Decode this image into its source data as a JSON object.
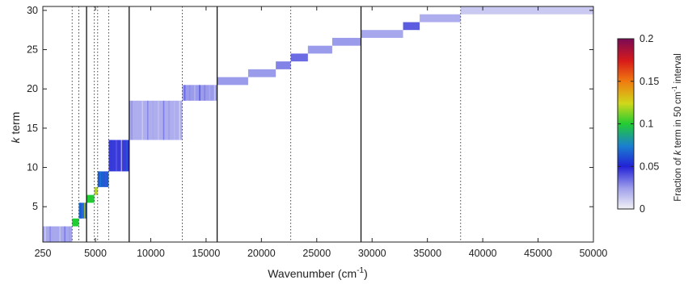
{
  "chart_data": {
    "type": "heatmap",
    "xlabel": "Wavenumber (cm",
    "xlabel_sup": "-1",
    "xlabel_tail": ")",
    "ylabel_italic": "k",
    "ylabel_rest": " term",
    "x_ticks": [
      "250",
      "5000",
      "10000",
      "15000",
      "20000",
      "25000",
      "30000",
      "35000",
      "40000",
      "45000",
      "50000"
    ],
    "x_tick_values": [
      250,
      5000,
      10000,
      15000,
      20000,
      25000,
      30000,
      35000,
      40000,
      45000,
      50000
    ],
    "y_ticks": [
      "5",
      "10",
      "15",
      "20",
      "25",
      "30"
    ],
    "y_tick_values": [
      5,
      10,
      15,
      20,
      25,
      30
    ],
    "xlim": [
      250,
      50000
    ],
    "ylim": [
      0.5,
      30.5
    ],
    "solid_band_boundaries": [
      4200,
      8050,
      16000,
      29000
    ],
    "dotted_lines": [
      2900,
      3500,
      4900,
      5200,
      6200,
      12850,
      22650,
      38000
    ],
    "colorbar": {
      "label_prefix": "Fraction of ",
      "label_italic": "k",
      "label_mid": " term in 50 cm",
      "label_sup": "-1",
      "label_tail": " interval",
      "ticks": [
        "0",
        "0.05",
        "0.1",
        "0.15",
        "0.2"
      ],
      "tick_values": [
        0,
        0.05,
        0.1,
        0.15,
        0.2
      ],
      "range": [
        0,
        0.2
      ]
    },
    "cells": [
      {
        "x0": 250,
        "x1": 2900,
        "k0": 1,
        "k1": 2,
        "v": 0.022
      },
      {
        "x0": 2900,
        "x1": 3500,
        "k0": 3,
        "k1": 3,
        "v": 0.1
      },
      {
        "x0": 3500,
        "x1": 4200,
        "k0": 4,
        "k1": 5,
        "v": 0.07
      },
      {
        "x0": 4200,
        "x1": 4900,
        "k0": 6,
        "k1": 6,
        "v": 0.1
      },
      {
        "x0": 4900,
        "x1": 5200,
        "k0": 7,
        "k1": 7,
        "v": 0.12
      },
      {
        "x0": 5200,
        "x1": 6200,
        "k0": 8,
        "k1": 9,
        "v": 0.065
      },
      {
        "x0": 6200,
        "x1": 8050,
        "k0": 10,
        "k1": 13,
        "v": 0.045
      },
      {
        "x0": 8050,
        "x1": 12850,
        "k0": 14,
        "k1": 18,
        "v": 0.02
      },
      {
        "x0": 12850,
        "x1": 16000,
        "k0": 19,
        "k1": 20,
        "v": 0.025
      },
      {
        "x0": 16000,
        "x1": 18800,
        "k0": 21,
        "k1": 21,
        "v": 0.025
      },
      {
        "x0": 18800,
        "x1": 21300,
        "k0": 22,
        "k1": 22,
        "v": 0.025
      },
      {
        "x0": 21300,
        "x1": 22650,
        "k0": 23,
        "k1": 23,
        "v": 0.03
      },
      {
        "x0": 22650,
        "x1": 24200,
        "k0": 24,
        "k1": 24,
        "v": 0.035
      },
      {
        "x0": 24200,
        "x1": 26400,
        "k0": 25,
        "k1": 25,
        "v": 0.025
      },
      {
        "x0": 26400,
        "x1": 29000,
        "k0": 26,
        "k1": 26,
        "v": 0.025
      },
      {
        "x0": 29000,
        "x1": 32800,
        "k0": 27,
        "k1": 27,
        "v": 0.022
      },
      {
        "x0": 32800,
        "x1": 34300,
        "k0": 28,
        "k1": 28,
        "v": 0.038
      },
      {
        "x0": 34300,
        "x1": 38000,
        "k0": 29,
        "k1": 29,
        "v": 0.02
      },
      {
        "x0": 38000,
        "x1": 50000,
        "k0": 30,
        "k1": 30,
        "v": 0.012
      }
    ]
  }
}
